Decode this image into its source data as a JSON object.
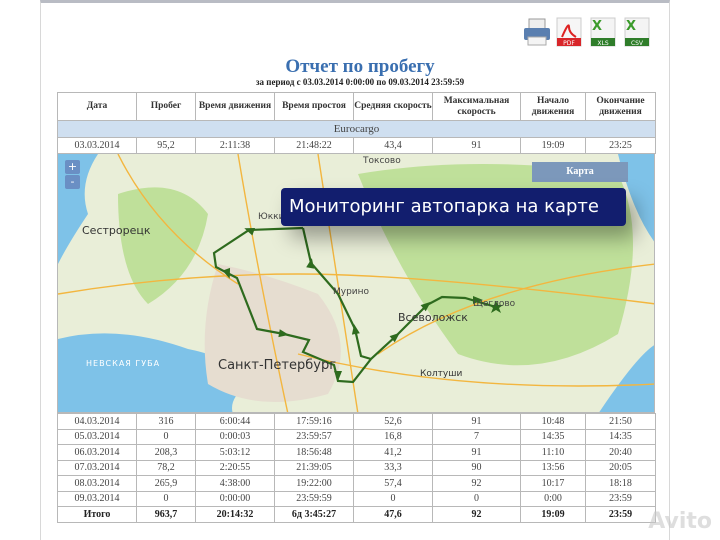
{
  "toolbar": {
    "icons": [
      "printer-icon",
      "pdf-icon",
      "xls-icon",
      "csv-icon"
    ],
    "pdf_label": "PDF",
    "xls_label": "XLS",
    "csv_label": "CSV"
  },
  "report": {
    "title": "Отчет по пробегу",
    "period": "за период с 03.03.2014 0:00:00 по 09.03.2014 23:59:59"
  },
  "table": {
    "headers": [
      "Дата",
      "Пробег",
      "Время движения",
      "Время простоя",
      "Средняя скорость",
      "Максимальная скорость",
      "Начало движения",
      "Окончание движения"
    ],
    "group": "Eurocargo",
    "first_row": [
      "03.03.2014",
      "95,2",
      "2:11:38",
      "21:48:22",
      "43,4",
      "91",
      "19:09",
      "23:25"
    ],
    "rows": [
      [
        "04.03.2014",
        "316",
        "6:00:44",
        "17:59:16",
        "52,6",
        "91",
        "10:48",
        "21:50"
      ],
      [
        "05.03.2014",
        "0",
        "0:00:03",
        "23:59:57",
        "16,8",
        "7",
        "14:35",
        "14:35"
      ],
      [
        "06.03.2014",
        "208,3",
        "5:03:12",
        "18:56:48",
        "41,2",
        "91",
        "11:10",
        "20:40"
      ],
      [
        "07.03.2014",
        "78,2",
        "2:20:55",
        "21:39:05",
        "33,3",
        "90",
        "13:56",
        "20:05"
      ],
      [
        "08.03.2014",
        "265,9",
        "4:38:00",
        "19:22:00",
        "57,4",
        "92",
        "10:17",
        "18:18"
      ],
      [
        "09.03.2014",
        "0",
        "0:00:00",
        "23:59:59",
        "0",
        "0",
        "0:00",
        "23:59"
      ]
    ],
    "total": [
      "Итого",
      "963,7",
      "20:14:32",
      "6д 3:45:27",
      "47,6",
      "92",
      "19:09",
      "23:59"
    ]
  },
  "map": {
    "zoom_in": "+",
    "zoom_out": "-",
    "layer_button": "Карта",
    "banner": "Мониторинг автопарка на карте",
    "places": {
      "toksovo": "Токсово",
      "yukki": "Юкки",
      "sestroretsk": "Сестрорецк",
      "murino": "Мурино",
      "vsevolozhsk": "Всеволожск",
      "shcheglovo": "Щеглово",
      "spb": "Санкт-Петербург",
      "koltushi": "Колтуши",
      "bay": "НЕВСКАЯ ГУБА"
    },
    "route_color": "#2e6b1e"
  },
  "watermark": "Avito"
}
